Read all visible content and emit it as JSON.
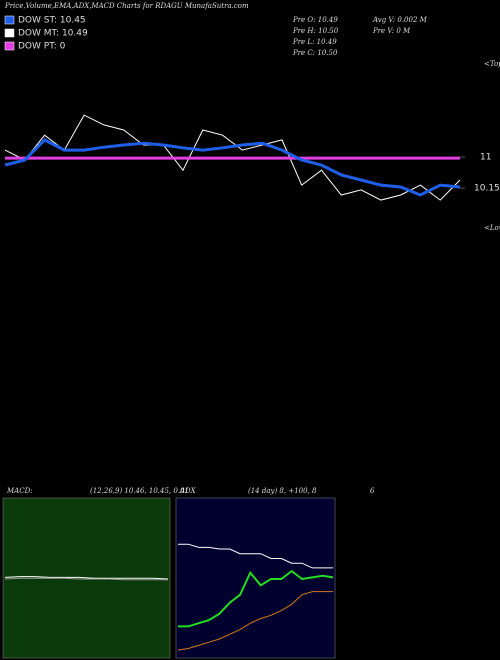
{
  "header": {
    "title": "Price,Volume,EMA,ADX,MACD Charts for RDAGU MunafaSutra.com",
    "legend": [
      {
        "label": "DOW ST: 10.45",
        "color": "#1f5fe8"
      },
      {
        "label": "DOW MT: 10.49",
        "color": "#ffffff"
      },
      {
        "label": "DOW PT: 0",
        "color": "#e23ee2"
      }
    ],
    "stats": [
      "Pre  O: 10.49",
      "Pre  H: 10.50",
      "Pre  L: 10.49",
      "Pre  C: 10.50",
      "Avg V: 0.002  M",
      "Pre  V: 0  M"
    ]
  },
  "chart_data": [
    {
      "type": "line",
      "annotations": [
        "<Tops",
        "<Lows"
      ],
      "ylim": [
        9,
        13.66
      ],
      "yticks": [
        10.15,
        11
      ],
      "series": [
        {
          "color": "#ffffff",
          "width": 1,
          "values": [
            11.19,
            10.92,
            11.6,
            11.19,
            12.15,
            11.88,
            11.74,
            11.33,
            11.33,
            10.64,
            11.74,
            11.6,
            11.19,
            11.33,
            11.47,
            10.23,
            10.64,
            9.96,
            10.1,
            9.82,
            9.96,
            10.23,
            9.82,
            10.37
          ]
        },
        {
          "color": "#e23ee2",
          "width": 3,
          "values": [
            10.97,
            10.97,
            10.97,
            10.97,
            10.97,
            10.97,
            10.97,
            10.97,
            10.97,
            10.97,
            10.97,
            10.97,
            10.97,
            10.97,
            10.97,
            10.97,
            10.97,
            10.97,
            10.97,
            10.97,
            10.97,
            10.97,
            10.97,
            10.97
          ]
        },
        {
          "color": "#1f5fe8",
          "width": 3,
          "values": [
            10.78,
            10.92,
            11.47,
            11.19,
            11.19,
            11.27,
            11.33,
            11.38,
            11.33,
            11.25,
            11.19,
            11.25,
            11.33,
            11.38,
            11.19,
            10.92,
            10.78,
            10.51,
            10.37,
            10.23,
            10.18,
            9.96,
            10.23,
            10.18
          ]
        }
      ]
    },
    {
      "type": "line",
      "title": "MACD:",
      "subtitle": "(12,26,9) 10.46, 10.45, 0.01",
      "background": "#0a3a0a",
      "ylim": [
        -1,
        1
      ],
      "series": [
        {
          "color": "#ffffff",
          "width": 1,
          "values": [
            0.02,
            0.03,
            0.03,
            0.02,
            0.02,
            0.02,
            0.01,
            0.01,
            0.01,
            0.01,
            0.01,
            0.0
          ]
        },
        {
          "color": "#999999",
          "width": 1,
          "values": [
            0.0,
            0.01,
            0.01,
            0.01,
            0.01,
            0.0,
            0.0,
            0.0,
            -0.01,
            -0.01,
            -0.01,
            -0.01
          ]
        }
      ]
    },
    {
      "type": "line",
      "title": "ADX",
      "subtitle": "(14 day) 8, +100, 8",
      "note": "6",
      "background": "#00002e",
      "ylim": [
        0,
        100
      ],
      "series": [
        {
          "color": "#ffffff",
          "width": 1,
          "values": [
            72,
            72,
            70,
            70,
            69,
            69,
            66,
            66,
            66,
            63,
            63,
            60,
            60,
            57,
            57,
            57
          ]
        },
        {
          "color": "#22dd22",
          "width": 2,
          "values": [
            20,
            20,
            22,
            24,
            28,
            35,
            40,
            54,
            46,
            50,
            50,
            55,
            50,
            51,
            52,
            51
          ]
        },
        {
          "color": "#d07a1a",
          "width": 1,
          "values": [
            5,
            6,
            8,
            10,
            12,
            15,
            18,
            22,
            25,
            27,
            30,
            34,
            40,
            42,
            42,
            42
          ]
        }
      ]
    }
  ]
}
